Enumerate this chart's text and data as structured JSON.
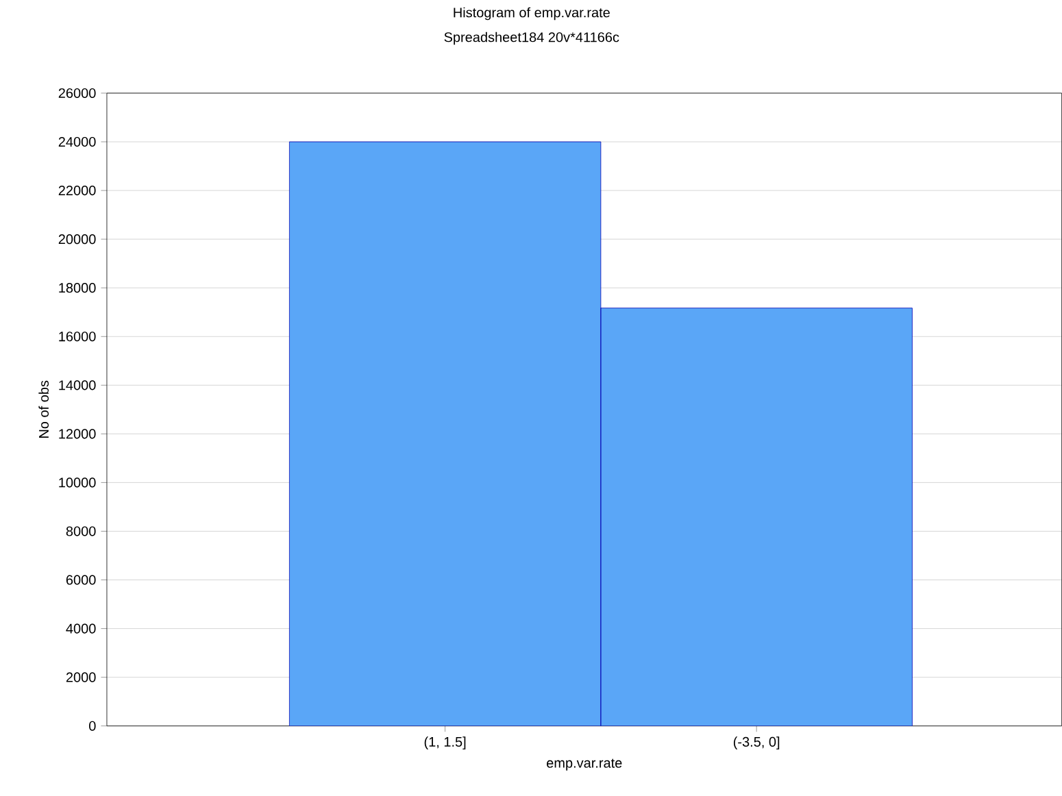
{
  "chart_data": {
    "type": "bar",
    "title": "Histogram of emp.var.rate",
    "subtitle": "Spreadsheet184 20v*41166c",
    "xlabel": "emp.var.rate",
    "ylabel": "No of obs",
    "categories": [
      "(1, 1.5]",
      "(-3.5, 0]"
    ],
    "values": [
      24000,
      17170
    ],
    "color": "#5aa6f7",
    "ylim": [
      0,
      26000
    ],
    "yticks": [
      0,
      2000,
      4000,
      6000,
      8000,
      10000,
      12000,
      14000,
      16000,
      18000,
      20000,
      22000,
      24000,
      26000
    ],
    "grid": "y"
  }
}
